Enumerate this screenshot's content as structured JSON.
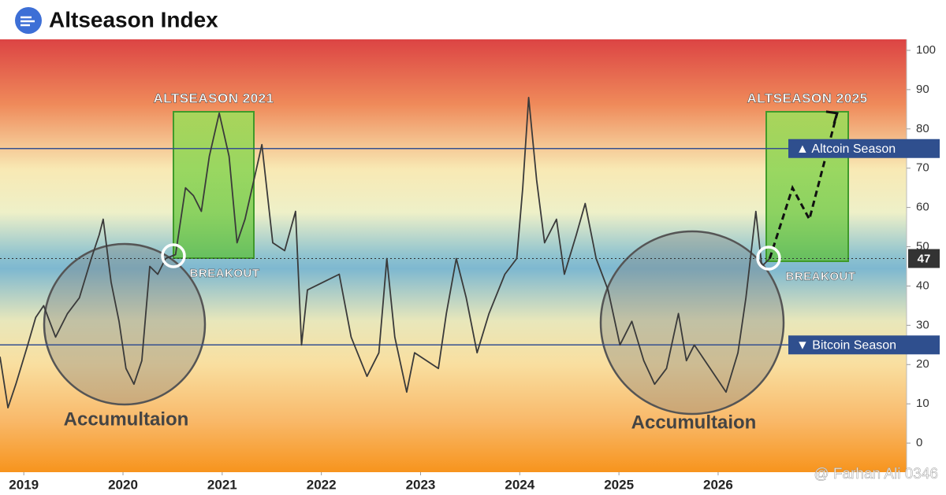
{
  "chart_data": {
    "type": "line",
    "title": "Altseason Index",
    "x": [
      2018.76,
      2018.84,
      2018.92,
      2019.04,
      2019.12,
      2019.2,
      2019.32,
      2019.44,
      2019.56,
      2019.68,
      2019.76,
      2019.8,
      2019.88,
      2019.96,
      2020.03,
      2020.11,
      2020.19,
      2020.27,
      2020.35,
      2020.43,
      2020.53,
      2020.63,
      2020.71,
      2020.79,
      2020.87,
      2020.97,
      2021.07,
      2021.15,
      2021.23,
      2021.32,
      2021.4,
      2021.51,
      2021.63,
      2021.74,
      2021.8,
      2021.86,
      2022.02,
      2022.18,
      2022.3,
      2022.46,
      2022.58,
      2022.66,
      2022.74,
      2022.86,
      2022.94,
      2023.06,
      2023.18,
      2023.26,
      2023.36,
      2023.46,
      2023.57,
      2023.69,
      2023.85,
      2023.97,
      2024.03,
      2024.09,
      2024.17,
      2024.25,
      2024.37,
      2024.45,
      2024.57,
      2024.66,
      2024.77,
      2024.89,
      2025.01,
      2025.13,
      2025.25,
      2025.36,
      2025.48,
      2025.6,
      2025.68,
      2025.76,
      2025.92,
      2026.08,
      2026.2,
      2026.28,
      2026.38,
      2026.44,
      2026.52
    ],
    "series": [
      {
        "name": "Altseason Index",
        "color": "#3a3a3a",
        "values": [
          22,
          9,
          15,
          25,
          32,
          35,
          27,
          33,
          37,
          47,
          53,
          57,
          41,
          31,
          19,
          15,
          21,
          45,
          43,
          47,
          48,
          65,
          63,
          59,
          73,
          84,
          73,
          51,
          57,
          67,
          76,
          51,
          49,
          59,
          25,
          39,
          41,
          43,
          27,
          17,
          23,
          47,
          27,
          13,
          23,
          21,
          19,
          33,
          47,
          37,
          23,
          33,
          43,
          47,
          65,
          88,
          67,
          51,
          57,
          43,
          53,
          61,
          47,
          39,
          25,
          31,
          21,
          15,
          19,
          33,
          21,
          25,
          19,
          13,
          23,
          37,
          59,
          45,
          47
        ]
      }
    ],
    "projection": {
      "x": [
        2026.52,
        2026.75,
        2026.92,
        2027.2
      ],
      "values": [
        47,
        65,
        57,
        84
      ]
    },
    "reference_lines": [
      {
        "value": 75,
        "label": "▲ Altcoin Season"
      },
      {
        "value": 25,
        "label": "▼ Bitcoin Season"
      }
    ],
    "last_value": 47,
    "annotations": [
      "ALTSEASON 2021",
      "BREAKOUT",
      "Accumultaion",
      "ALTSEASON 2025",
      "BREAKOUT",
      "Accumultaion"
    ],
    "watermark": "@ Farhan Ali 0346",
    "xlim": [
      2018.76,
      2027.9
    ],
    "xticks": [
      2019,
      2020,
      2021,
      2022,
      2023,
      2024,
      2025,
      2026
    ],
    "ylim": [
      -7.4,
      102.8
    ],
    "yticks": [
      0,
      10,
      20,
      30,
      40,
      50,
      60,
      70,
      80,
      90,
      100
    ]
  }
}
